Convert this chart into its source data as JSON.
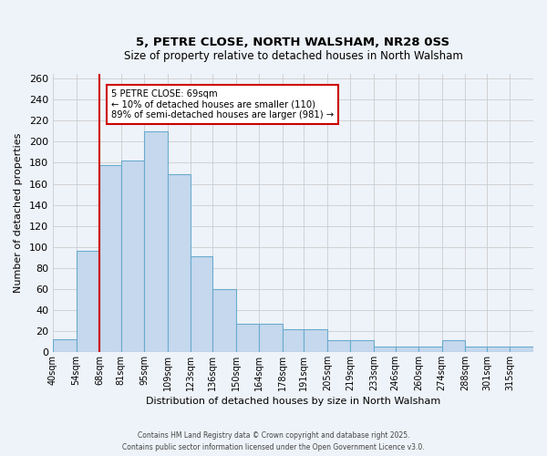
{
  "title": "5, PETRE CLOSE, NORTH WALSHAM, NR28 0SS",
  "subtitle": "Size of property relative to detached houses in North Walsham",
  "xlabel": "Distribution of detached houses by size in North Walsham",
  "ylabel": "Number of detached properties",
  "bin_labels": [
    "40sqm",
    "54sqm",
    "68sqm",
    "81sqm",
    "95sqm",
    "109sqm",
    "123sqm",
    "136sqm",
    "150sqm",
    "164sqm",
    "178sqm",
    "191sqm",
    "205sqm",
    "219sqm",
    "233sqm",
    "246sqm",
    "260sqm",
    "274sqm",
    "288sqm",
    "301sqm",
    "315sqm"
  ],
  "bin_edges": [
    40,
    54,
    68,
    81,
    95,
    109,
    123,
    136,
    150,
    164,
    178,
    191,
    205,
    219,
    233,
    246,
    260,
    274,
    288,
    301,
    315,
    329
  ],
  "bar_heights": [
    12,
    96,
    178,
    182,
    210,
    169,
    91,
    60,
    27,
    27,
    22,
    22,
    11,
    11,
    5,
    5,
    5,
    11,
    5,
    5,
    5
  ],
  "bar_color": "#c5d8ed",
  "bar_edge_color": "#6aabce",
  "grid_color": "#cccccc",
  "background_color": "#eef3f9",
  "property_line_x": 68,
  "annotation_title": "5 PETRE CLOSE: 69sqm",
  "annotation_line1": "← 10% of detached houses are smaller (110)",
  "annotation_line2": "89% of semi-detached houses are larger (981) →",
  "annotation_box_color": "#ffffff",
  "annotation_box_edge": "#cc0000",
  "vline_color": "#cc0000",
  "ylim": [
    0,
    265
  ],
  "yticks": [
    0,
    20,
    40,
    60,
    80,
    100,
    120,
    140,
    160,
    180,
    200,
    220,
    240,
    260
  ],
  "footer1": "Contains HM Land Registry data © Crown copyright and database right 2025.",
  "footer2": "Contains public sector information licensed under the Open Government Licence v3.0."
}
